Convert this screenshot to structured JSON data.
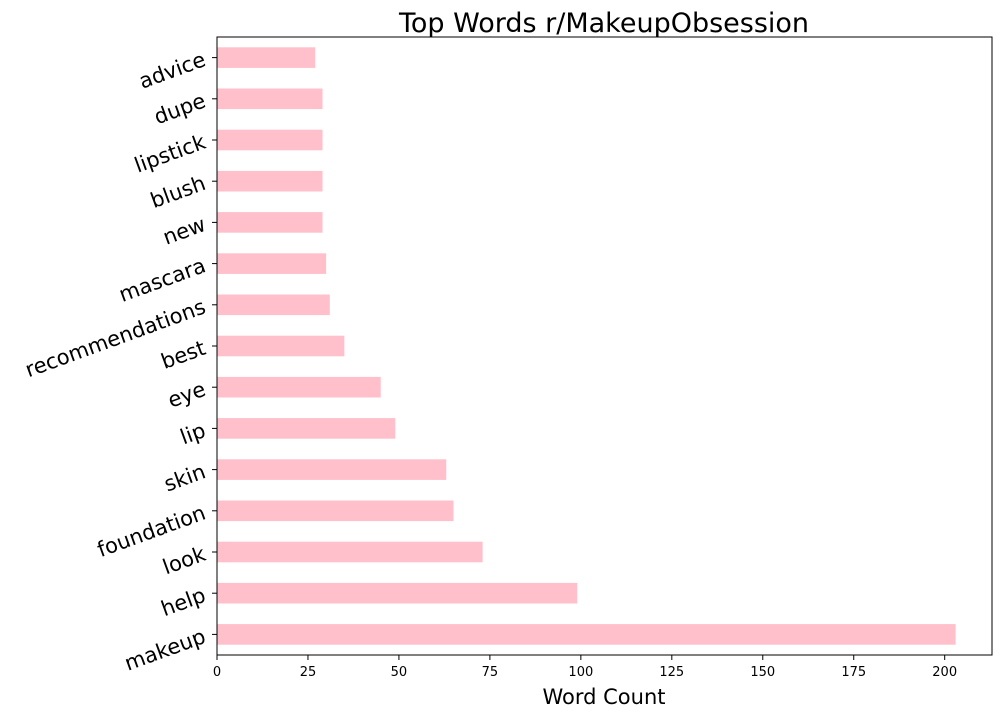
{
  "chart_data": {
    "type": "bar",
    "orientation": "horizontal",
    "title": "Top Words r/MakeupObsession",
    "xlabel": "Word Count",
    "ylabel": "",
    "categories": [
      "makeup",
      "help",
      "look",
      "foundation",
      "skin",
      "lip",
      "eye",
      "best",
      "recommendations",
      "mascara",
      "new",
      "blush",
      "lipstick",
      "dupe",
      "advice"
    ],
    "values": [
      203,
      99,
      73,
      65,
      63,
      49,
      45,
      35,
      31,
      30,
      29,
      29,
      29,
      29,
      27
    ],
    "xlim": [
      0,
      213
    ],
    "xticks": [
      0,
      25,
      50,
      75,
      100,
      125,
      150,
      175,
      200
    ],
    "grid": false,
    "bar_color": "#ffc0cb",
    "category_order": "first category at bottom"
  }
}
